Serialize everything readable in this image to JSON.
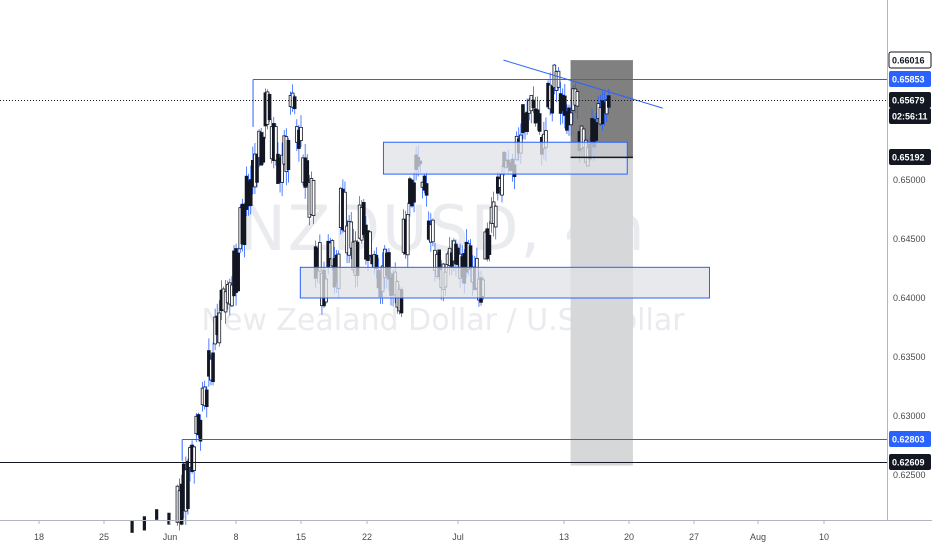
{
  "watermark": {
    "symbol": "NZDUSD, 4h",
    "name": "New Zealand Dollar / U.S. Dollar"
  },
  "colors": {
    "line": "#2962ff",
    "dark_zone": "#808080",
    "light_zone": "#d6d7d9",
    "candle": "#131722",
    "box_fill": "#dfe1e5"
  },
  "price_labels": [
    {
      "id": "top",
      "text": "0.66016",
      "price": 0.66016,
      "style": "outline"
    },
    {
      "id": "resistance",
      "text": "0.65853",
      "price": 0.65853,
      "style": "blue"
    },
    {
      "id": "last",
      "text": "0.65679",
      "price": 0.65679,
      "style": "dark"
    },
    {
      "id": "countdown",
      "text": "02:56:11",
      "price": 0.65545,
      "style": "dark"
    },
    {
      "id": "entry",
      "text": "0.65192",
      "price": 0.65192,
      "style": "dark"
    },
    {
      "id": "support2",
      "text": "0.62803",
      "price": 0.62803,
      "style": "blue"
    },
    {
      "id": "support1",
      "text": "0.62609",
      "price": 0.62609,
      "style": "dark"
    }
  ],
  "chart_data": {
    "type": "candlestick",
    "y_ticks": [
      "0.65000",
      "0.64500",
      "0.64000",
      "0.63500",
      "0.63000",
      "0.62500"
    ],
    "x_ticks": [
      "18",
      "25",
      "Jun",
      "8",
      "15",
      "22",
      "Jul",
      "13",
      "20",
      "27",
      "Aug",
      "10"
    ],
    "ylim": [
      0.6218,
      0.6646
    ],
    "series_path": [
      [
        0.621,
        0.624
      ],
      [
        0.6222,
        0.6258
      ],
      [
        0.6255,
        0.6275
      ],
      [
        0.6282,
        0.63
      ],
      [
        0.6306,
        0.6325
      ],
      [
        0.633,
        0.6352
      ],
      [
        0.6365,
        0.6385
      ],
      [
        0.6392,
        0.6405
      ],
      [
        0.6396,
        0.6415
      ],
      [
        0.6405,
        0.644
      ],
      [
        0.6445,
        0.648
      ],
      [
        0.6475,
        0.65
      ],
      [
        0.6495,
        0.652
      ],
      [
        0.6515,
        0.654
      ],
      [
        0.6548,
        0.6572
      ],
      [
        0.652,
        0.6546
      ],
      [
        0.65,
        0.652
      ],
      [
        0.651,
        0.6535
      ],
      [
        0.656,
        0.657
      ],
      [
        0.653,
        0.6545
      ],
      [
        0.6495,
        0.652
      ],
      [
        0.647,
        0.65
      ],
      [
        0.642,
        0.6445
      ],
      [
        0.6395,
        0.642
      ],
      [
        0.643,
        0.645
      ],
      [
        0.641,
        0.6435
      ],
      [
        0.646,
        0.649
      ],
      [
        0.644,
        0.6465
      ],
      [
        0.642,
        0.6445
      ],
      [
        0.645,
        0.648
      ],
      [
        0.6435,
        0.646
      ],
      [
        0.6425,
        0.644
      ],
      [
        0.6405,
        0.6425
      ],
      [
        0.642,
        0.644
      ],
      [
        0.64,
        0.642
      ],
      [
        0.639,
        0.641
      ],
      [
        0.644,
        0.647
      ],
      [
        0.648,
        0.65
      ],
      [
        0.651,
        0.652
      ],
      [
        0.649,
        0.65
      ],
      [
        0.645,
        0.6465
      ],
      [
        0.642,
        0.644
      ],
      [
        0.641,
        0.6425
      ],
      [
        0.6425,
        0.644
      ],
      [
        0.643,
        0.6445
      ],
      [
        0.6415,
        0.6435
      ],
      [
        0.6425,
        0.6445
      ],
      [
        0.641,
        0.643
      ],
      [
        0.64,
        0.6415
      ],
      [
        0.6435,
        0.6455
      ],
      [
        0.646,
        0.648
      ],
      [
        0.649,
        0.6505
      ],
      [
        0.651,
        0.652
      ],
      [
        0.6505,
        0.6515
      ],
      [
        0.652,
        0.6535
      ],
      [
        0.654,
        0.656
      ],
      [
        0.656,
        0.657
      ],
      [
        0.6545,
        0.656
      ],
      [
        0.6525,
        0.654
      ],
      [
        0.656,
        0.658
      ],
      [
        0.6575,
        0.6595
      ],
      [
        0.6555,
        0.6575
      ],
      [
        0.6545,
        0.656
      ],
      [
        0.656,
        0.6575
      ],
      [
        0.6525,
        0.6545
      ],
      [
        0.6515,
        0.653
      ],
      [
        0.653,
        0.655
      ],
      [
        0.655,
        0.6565
      ],
      [
        0.656,
        0.6568
      ]
    ],
    "annotations": [
      {
        "kind": "hline",
        "label": "0.65853",
        "price": 0.65853,
        "from_day": 9.0
      },
      {
        "kind": "hline",
        "label": "0.62803",
        "price": 0.62803,
        "from_day": 1.5
      },
      {
        "kind": "hline",
        "label": "0.62609",
        "price": 0.62609,
        "from_day": -23
      },
      {
        "kind": "zone",
        "price_low": 0.6505,
        "price_high": 0.6532,
        "from_day": 22.8,
        "to_day": 48.6
      },
      {
        "kind": "zone",
        "price_low": 0.64,
        "price_high": 0.6426,
        "from_day": 14.0,
        "to_day": 57.3
      },
      {
        "kind": "trendline",
        "from": [
          35.5,
          0.66016
        ],
        "to": [
          46.0,
          0.6566
        ]
      },
      {
        "kind": "risk_zone",
        "price_low": 0.65192,
        "price_high": 0.66016,
        "from_day": 42.6,
        "to_day": 49.2
      },
      {
        "kind": "reward_zone",
        "price_low": 0.6258,
        "price_high": 0.65192,
        "from_day": 42.6,
        "to_day": 49.2
      }
    ]
  }
}
